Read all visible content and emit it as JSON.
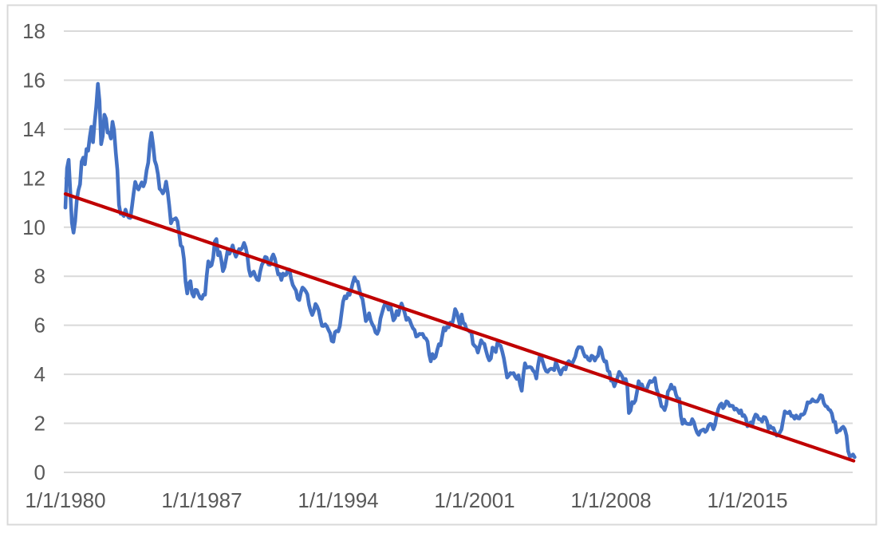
{
  "chart_data": {
    "type": "line",
    "title": "",
    "legend": "none",
    "grid": true,
    "y_axis": {
      "min": 0,
      "max": 18,
      "step": 2,
      "tick_labels": [
        "0",
        "2",
        "4",
        "6",
        "8",
        "10",
        "12",
        "14",
        "16",
        "18"
      ],
      "label_color": "#595959"
    },
    "x_axis": {
      "tick_years": [
        1980,
        1987,
        1994,
        2001,
        2008,
        2015
      ],
      "tick_labels": [
        "1/1/1980",
        "1/1/1987",
        "1/1/1994",
        "1/1/2001",
        "1/1/2008",
        "1/1/2015"
      ],
      "start": "1/1980",
      "end": "7/2020",
      "frequency": "monthly",
      "label_color": "#595959"
    },
    "series": {
      "primary": {
        "color": "#4472C4",
        "stroke_width": 4.6,
        "start_year": 1980,
        "values_by_year": {
          "1980": [
            10.8,
            12.41,
            12.75,
            11.47,
            10.18,
            9.78,
            10.25,
            11.1,
            11.51,
            11.75,
            12.68,
            12.84
          ],
          "1981": [
            12.57,
            13.19,
            13.12,
            13.68,
            14.1,
            13.47,
            14.28,
            14.94,
            15.85,
            15.15,
            13.39,
            13.72
          ],
          "1982": [
            14.59,
            14.43,
            13.86,
            13.87,
            13.62,
            14.3,
            13.95,
            13.06,
            12.34,
            10.91,
            10.55,
            10.54
          ],
          "1983": [
            10.46,
            10.72,
            10.51,
            10.4,
            10.38,
            10.85,
            11.38,
            11.85,
            11.65,
            11.54,
            11.69,
            11.83
          ],
          "1984": [
            11.67,
            11.84,
            12.32,
            12.63,
            13.41,
            13.85,
            13.36,
            12.72,
            12.52,
            12.16,
            11.57,
            11.5
          ],
          "1985": [
            11.38,
            11.51,
            11.86,
            11.43,
            10.85,
            10.16,
            10.31,
            10.33,
            10.37,
            10.24,
            9.78,
            9.26
          ],
          "1986": [
            9.19,
            8.7,
            7.78,
            7.3,
            7.71,
            7.8,
            7.3,
            7.17,
            7.45,
            7.43,
            7.25,
            7.11
          ],
          "1987": [
            7.08,
            7.25,
            7.25,
            8.02,
            8.61,
            8.4,
            8.45,
            8.76,
            9.42,
            9.52,
            8.86,
            8.99
          ],
          "1988": [
            8.67,
            8.21,
            8.37,
            8.72,
            9.09,
            8.92,
            9.06,
            9.26,
            8.98,
            8.8,
            8.96,
            9.11
          ],
          "1989": [
            9.09,
            9.17,
            9.36,
            9.18,
            8.86,
            8.28,
            8.02,
            8.11,
            8.19,
            8.01,
            7.87,
            7.84
          ],
          "1990": [
            8.21,
            8.47,
            8.59,
            8.79,
            8.76,
            8.48,
            8.47,
            8.75,
            8.89,
            8.72,
            8.39,
            8.08
          ],
          "1991": [
            8.09,
            7.85,
            8.11,
            8.04,
            8.07,
            8.28,
            8.27,
            7.9,
            7.65,
            7.53,
            7.42,
            7.09
          ],
          "1992": [
            7.03,
            7.34,
            7.54,
            7.48,
            7.39,
            7.26,
            6.84,
            6.59,
            6.42,
            6.59,
            6.87,
            6.77
          ],
          "1993": [
            6.6,
            6.26,
            5.98,
            5.97,
            6.04,
            5.96,
            5.81,
            5.68,
            5.36,
            5.33,
            5.72,
            5.77
          ],
          "1994": [
            5.75,
            5.97,
            6.48,
            6.97,
            7.18,
            7.1,
            7.3,
            7.24,
            7.46,
            7.74,
            7.96,
            7.81
          ],
          "1995": [
            7.78,
            7.47,
            7.2,
            7.06,
            6.63,
            6.17,
            6.28,
            6.49,
            6.2,
            6.04,
            5.93,
            5.71
          ],
          "1996": [
            5.65,
            5.81,
            6.27,
            6.51,
            6.74,
            6.91,
            6.87,
            6.64,
            6.83,
            6.53,
            6.2,
            6.3
          ],
          "1997": [
            6.58,
            6.42,
            6.69,
            6.89,
            6.71,
            6.49,
            6.22,
            6.3,
            6.21,
            6.03,
            5.88,
            5.81
          ],
          "1998": [
            5.54,
            5.57,
            5.65,
            5.64,
            5.65,
            5.5,
            5.46,
            5.34,
            4.81,
            4.53,
            4.83,
            4.65
          ],
          "1999": [
            4.72,
            5.0,
            5.23,
            5.18,
            5.54,
            5.9,
            5.79,
            5.94,
            5.92,
            6.11,
            6.03,
            6.28
          ],
          "2000": [
            6.66,
            6.52,
            6.26,
            5.99,
            6.44,
            6.1,
            6.05,
            5.83,
            5.8,
            5.74,
            5.72,
            5.24
          ],
          "2001": [
            5.16,
            5.1,
            4.89,
            5.14,
            5.39,
            5.28,
            5.24,
            4.97,
            4.73,
            4.57,
            4.65,
            5.09
          ],
          "2002": [
            5.04,
            4.91,
            5.28,
            5.21,
            5.16,
            4.93,
            4.65,
            4.26,
            3.87,
            3.94,
            4.05,
            4.03
          ],
          "2003": [
            4.05,
            3.9,
            3.81,
            3.96,
            3.57,
            3.33,
            3.98,
            4.45,
            4.27,
            4.29,
            4.3,
            4.27
          ],
          "2004": [
            4.15,
            4.08,
            3.83,
            4.35,
            4.72,
            4.73,
            4.5,
            4.28,
            4.13,
            4.1,
            4.19,
            4.23
          ],
          "2005": [
            4.22,
            4.17,
            4.5,
            4.34,
            4.14,
            4.0,
            4.18,
            4.26,
            4.2,
            4.46,
            4.54,
            4.47
          ],
          "2006": [
            4.42,
            4.57,
            4.72,
            4.99,
            5.11,
            5.11,
            5.09,
            4.88,
            4.72,
            4.73,
            4.6,
            4.56
          ],
          "2007": [
            4.76,
            4.72,
            4.56,
            4.69,
            4.75,
            5.1,
            5.0,
            4.67,
            4.52,
            4.53,
            4.15,
            4.1
          ],
          "2008": [
            3.74,
            3.74,
            3.51,
            3.68,
            3.88,
            4.1,
            4.01,
            3.89,
            3.69,
            3.81,
            3.53,
            2.42
          ],
          "2009": [
            2.52,
            2.87,
            2.82,
            2.93,
            3.29,
            3.72,
            3.56,
            3.59,
            3.4,
            3.39,
            3.4,
            3.59
          ],
          "2010": [
            3.73,
            3.69,
            3.73,
            3.85,
            3.42,
            3.2,
            3.01,
            2.7,
            2.65,
            2.54,
            2.76,
            3.29
          ],
          "2011": [
            3.39,
            3.58,
            3.41,
            3.46,
            3.17,
            3.0,
            3.0,
            2.3,
            1.98,
            2.15,
            2.01,
            1.98
          ],
          "2012": [
            1.97,
            1.97,
            2.17,
            2.05,
            1.8,
            1.62,
            1.53,
            1.68,
            1.72,
            1.75,
            1.65,
            1.72
          ],
          "2013": [
            1.91,
            1.98,
            1.96,
            1.76,
            1.93,
            2.3,
            2.58,
            2.74,
            2.81,
            2.62,
            2.72,
            2.9
          ],
          "2014": [
            2.86,
            2.71,
            2.72,
            2.71,
            2.56,
            2.6,
            2.54,
            2.42,
            2.53,
            2.3,
            2.33,
            2.21
          ],
          "2015": [
            1.88,
            1.98,
            2.04,
            1.94,
            2.2,
            2.36,
            2.32,
            2.17,
            2.17,
            2.07,
            2.26,
            2.24
          ],
          "2016": [
            2.09,
            1.78,
            1.89,
            1.81,
            1.81,
            1.64,
            1.5,
            1.56,
            1.63,
            1.76,
            2.14,
            2.49
          ],
          "2017": [
            2.43,
            2.42,
            2.48,
            2.3,
            2.3,
            2.19,
            2.32,
            2.21,
            2.2,
            2.36,
            2.35,
            2.4
          ],
          "2018": [
            2.58,
            2.86,
            2.84,
            2.87,
            2.98,
            2.91,
            2.89,
            2.89,
            3.0,
            3.15,
            3.12,
            2.83
          ],
          "2019": [
            2.71,
            2.68,
            2.57,
            2.53,
            2.4,
            2.07,
            2.06,
            1.63,
            1.7,
            1.71,
            1.81,
            1.86
          ],
          "2020": [
            1.76,
            1.5,
            0.87,
            0.66,
            0.67,
            0.73,
            0.62
          ]
        }
      },
      "trendline": {
        "color": "#C00000",
        "stroke_width": 4.2,
        "start": {
          "year": 1980.0,
          "value": 11.36
        },
        "end": {
          "year": 2020.45,
          "value": 0.47
        }
      }
    },
    "plot_colors": {
      "gridline": "#D9D9D9",
      "border": "#D9D9D9",
      "background": "#FFFFFF"
    }
  }
}
